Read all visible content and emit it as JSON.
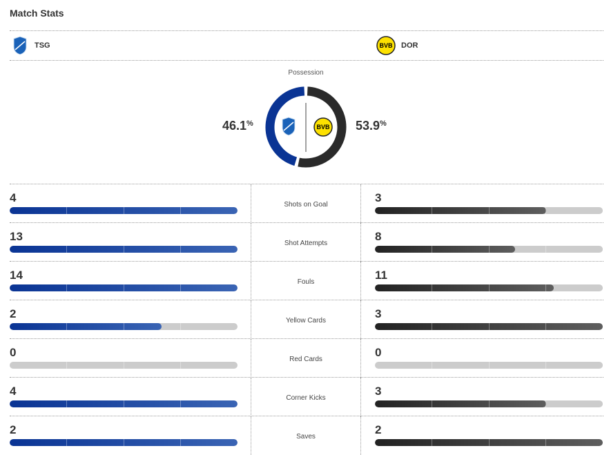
{
  "title": "Match Stats",
  "home": {
    "abbr": "TSG",
    "color": "#0a3494",
    "possession": "46.1",
    "possession_value": 46.1
  },
  "away": {
    "abbr": "DOR",
    "color": "#2a2a2a",
    "possession": "53.9",
    "possession_value": 53.9
  },
  "possession_label": "Possession",
  "percent_sign": "%",
  "stats": [
    {
      "label": "Shots on Goal",
      "home": "4",
      "away": "3",
      "home_fill": 1.0,
      "away_fill": 0.75
    },
    {
      "label": "Shot Attempts",
      "home": "13",
      "away": "8",
      "home_fill": 1.0,
      "away_fill": 0.615
    },
    {
      "label": "Fouls",
      "home": "14",
      "away": "11",
      "home_fill": 1.0,
      "away_fill": 0.786
    },
    {
      "label": "Yellow Cards",
      "home": "2",
      "away": "3",
      "home_fill": 0.667,
      "away_fill": 1.0
    },
    {
      "label": "Red Cards",
      "home": "0",
      "away": "0",
      "home_fill": 0,
      "away_fill": 0
    },
    {
      "label": "Corner Kicks",
      "home": "4",
      "away": "3",
      "home_fill": 1.0,
      "away_fill": 0.75
    },
    {
      "label": "Saves",
      "home": "2",
      "away": "2",
      "home_fill": 1.0,
      "away_fill": 1.0
    }
  ]
}
